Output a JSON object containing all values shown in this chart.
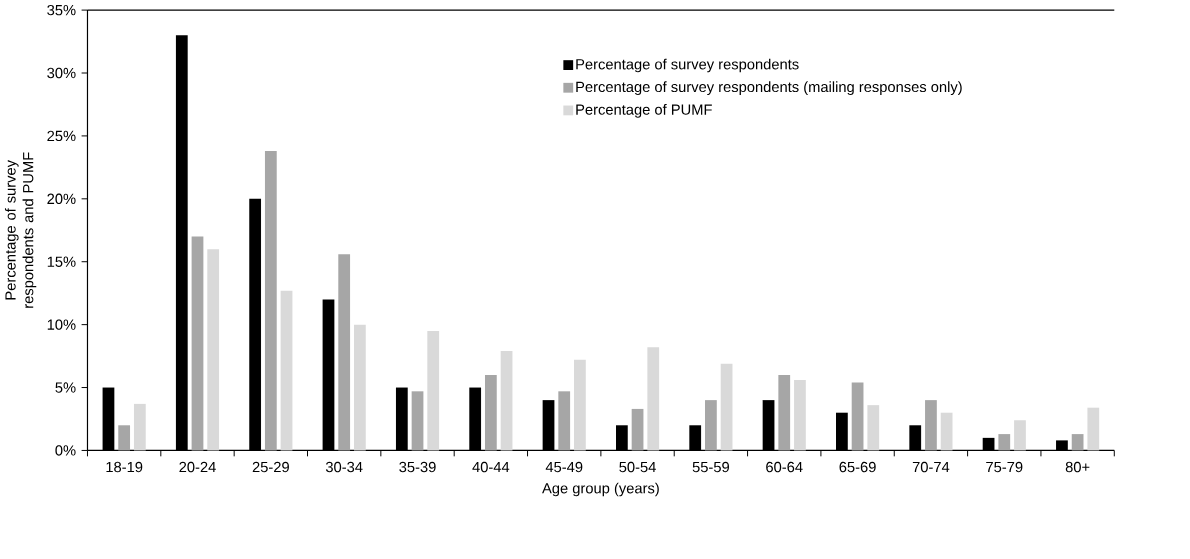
{
  "chart_data": {
    "type": "bar",
    "xlabel": "Age group (years)",
    "ylabel": "Percentage of survey respondents and PUMF",
    "categories": [
      "18-19",
      "20-24",
      "25-29",
      "30-34",
      "35-39",
      "40-44",
      "45-49",
      "50-54",
      "55-59",
      "60-64",
      "65-69",
      "70-74",
      "75-79",
      "80+"
    ],
    "series": [
      {
        "name": "Percentage of survey respondents",
        "color": "#000000",
        "values": [
          5,
          33,
          20,
          12,
          5,
          5,
          4,
          2,
          2,
          4,
          3,
          2,
          1,
          0.8
        ]
      },
      {
        "name": "Percentage of survey respondents (mailing responses only)",
        "color": "#a6a6a6",
        "values": [
          2,
          17,
          23.8,
          15.6,
          4.7,
          6,
          4.7,
          3.3,
          4,
          6,
          5.4,
          4,
          1.3,
          1.3
        ]
      },
      {
        "name": "Percentage of PUMF",
        "color": "#d9d9d9",
        "values": [
          3.7,
          16,
          12.7,
          10,
          9.5,
          7.9,
          7.2,
          8.2,
          6.9,
          5.6,
          3.6,
          3,
          2.4,
          3.4
        ]
      }
    ],
    "ylim": [
      0,
      35
    ],
    "yticks": [
      {
        "value": 0,
        "label": "0%"
      },
      {
        "value": 5,
        "label": "5%"
      },
      {
        "value": 10,
        "label": "10%"
      },
      {
        "value": 15,
        "label": "15%"
      },
      {
        "value": 20,
        "label": "20%"
      },
      {
        "value": 25,
        "label": "25%"
      },
      {
        "value": 30,
        "label": "30%"
      },
      {
        "value": 35,
        "label": "35%"
      }
    ],
    "grid": false,
    "legend": "top right"
  }
}
